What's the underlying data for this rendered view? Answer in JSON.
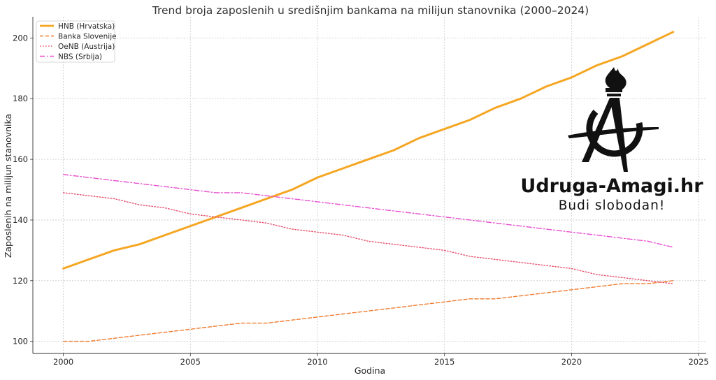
{
  "chart_data": {
    "type": "line",
    "title": "Trend broja zaposlenih u središnjim bankama na milijun stanovnika (2000–2024)",
    "xlabel": "Godina",
    "ylabel": "Zaposlenih na milijun stanovnika",
    "xlim": [
      1998.8,
      2025.3
    ],
    "ylim": [
      96,
      207
    ],
    "xticks": [
      2000,
      2005,
      2010,
      2015,
      2020,
      2025
    ],
    "yticks": [
      100,
      120,
      140,
      160,
      180,
      200
    ],
    "grid": true,
    "legend_position": "top-left",
    "x": [
      2000,
      2001,
      2002,
      2003,
      2004,
      2005,
      2006,
      2007,
      2008,
      2009,
      2010,
      2011,
      2012,
      2013,
      2014,
      2015,
      2016,
      2017,
      2018,
      2019,
      2020,
      2021,
      2022,
      2023,
      2024
    ],
    "series": [
      {
        "name": "HNB (Hrvatska)",
        "color": "#f5a623",
        "style": "solid",
        "values": [
          124,
          127,
          130,
          132,
          135,
          138,
          141,
          144,
          147,
          150,
          154,
          157,
          160,
          163,
          167,
          170,
          173,
          177,
          180,
          184,
          187,
          191,
          194,
          198,
          202
        ]
      },
      {
        "name": "Banka Slovenije",
        "color": "#f07a2e",
        "style": "dashed",
        "values": [
          100,
          100,
          101,
          102,
          103,
          104,
          105,
          106,
          106,
          107,
          108,
          109,
          110,
          111,
          112,
          113,
          114,
          114,
          115,
          116,
          117,
          118,
          119,
          119,
          120
        ]
      },
      {
        "name": "OeNB (Austrija)",
        "color": "#e8506a",
        "style": "dotted",
        "values": [
          149,
          148,
          147,
          145,
          144,
          142,
          141,
          140,
          139,
          137,
          136,
          135,
          133,
          132,
          131,
          130,
          128,
          127,
          126,
          125,
          124,
          122,
          121,
          120,
          119
        ]
      },
      {
        "name": "NBS (Srbija)",
        "color": "#e84fd0",
        "style": "dashdot",
        "values": [
          155,
          154,
          153,
          152,
          151,
          150,
          149,
          149,
          148,
          147,
          146,
          145,
          144,
          143,
          142,
          141,
          140,
          139,
          138,
          137,
          136,
          135,
          134,
          133,
          131
        ]
      }
    ]
  },
  "watermark": {
    "brand": "Udruga-Amagi.hr",
    "slogan": "Budi slobodan!",
    "logo_icon": "anarchy-torch-icon"
  }
}
